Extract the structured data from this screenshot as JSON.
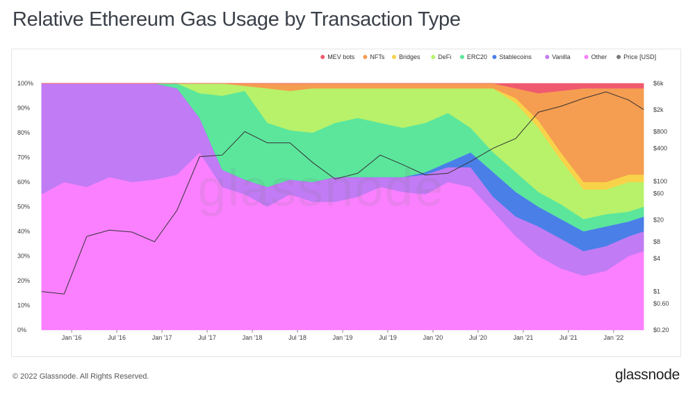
{
  "title": "Relative Ethereum Gas Usage by Transaction Type",
  "footer": {
    "copyright": "© 2022 Glassnode. All Rights Reserved.",
    "brand": "glassnode"
  },
  "watermark": "glassnode",
  "chart_data": {
    "type": "area",
    "stacked": true,
    "title": "Relative Ethereum Gas Usage by Transaction Type",
    "legend_position": "top-right",
    "grid": false,
    "x_ticks": [
      "Jan '16",
      "Jul '16",
      "Jan '17",
      "Jul '17",
      "Jan '18",
      "Jul '18",
      "Jan '19",
      "Jul '19",
      "Jan '20",
      "Jul '20",
      "Jan '21",
      "Jul '21",
      "Jan '22"
    ],
    "y_left_ticks": [
      "0%",
      "10%",
      "20%",
      "30%",
      "40%",
      "50%",
      "60%",
      "70%",
      "80%",
      "90%",
      "100%"
    ],
    "y_left_range": [
      0,
      100
    ],
    "y_right_scale": "log",
    "y_right_range": [
      0.2,
      6000
    ],
    "y_right_ticks": [
      {
        "label": "$0.20",
        "value": 0.2
      },
      {
        "label": "$0.60",
        "value": 0.6
      },
      {
        "label": "$1",
        "value": 1
      },
      {
        "label": "$4",
        "value": 4
      },
      {
        "label": "$8",
        "value": 8
      },
      {
        "label": "$20",
        "value": 20
      },
      {
        "label": "$60",
        "value": 60
      },
      {
        "label": "$100",
        "value": 100
      },
      {
        "label": "$400",
        "value": 400
      },
      {
        "label": "$800",
        "value": 800
      },
      {
        "label": "$2k",
        "value": 2000
      },
      {
        "label": "$6k",
        "value": 6000
      }
    ],
    "x": [
      "2015-09",
      "2015-12",
      "2016-03",
      "2016-06",
      "2016-09",
      "2016-12",
      "2017-03",
      "2017-06",
      "2017-09",
      "2017-12",
      "2018-03",
      "2018-06",
      "2018-09",
      "2018-12",
      "2019-03",
      "2019-06",
      "2019-09",
      "2019-12",
      "2020-03",
      "2020-06",
      "2020-09",
      "2020-12",
      "2021-03",
      "2021-06",
      "2021-09",
      "2021-12",
      "2022-03",
      "2022-05"
    ],
    "series": [
      {
        "name": "Other",
        "color": "#fa80ff",
        "values": [
          55,
          60,
          58,
          62,
          60,
          61,
          63,
          72,
          58,
          55,
          50,
          55,
          52,
          52,
          54,
          58,
          56,
          55,
          60,
          58,
          48,
          38,
          30,
          25,
          22,
          24,
          30,
          32
        ]
      },
      {
        "name": "Vanilla",
        "color": "#c17bf4",
        "values": [
          45,
          40,
          42,
          38,
          40,
          39,
          35,
          14,
          7,
          6,
          8,
          6,
          8,
          10,
          8,
          4,
          6,
          8,
          6,
          8,
          6,
          8,
          12,
          12,
          10,
          10,
          8,
          8
        ]
      },
      {
        "name": "Stablecoins",
        "color": "#4a7fe8",
        "values": [
          0,
          0,
          0,
          0,
          0,
          0,
          0,
          0,
          0,
          0,
          0,
          0,
          0,
          0,
          0,
          0,
          0,
          1,
          2,
          6,
          10,
          10,
          8,
          8,
          8,
          8,
          6,
          6
        ]
      },
      {
        "name": "ERC20",
        "color": "#5be69c",
        "values": [
          0,
          0,
          0,
          0,
          0,
          0,
          2,
          10,
          30,
          36,
          26,
          20,
          20,
          22,
          24,
          22,
          20,
          20,
          20,
          10,
          8,
          8,
          6,
          6,
          5,
          5,
          4,
          4
        ]
      },
      {
        "name": "DeFi",
        "color": "#b7f26a",
        "values": [
          0,
          0,
          0,
          0,
          0,
          0,
          0,
          4,
          5,
          2,
          14,
          16,
          18,
          14,
          12,
          14,
          16,
          14,
          10,
          16,
          26,
          28,
          26,
          18,
          12,
          10,
          12,
          10
        ]
      },
      {
        "name": "Bridges",
        "color": "#f8d349",
        "values": [
          0,
          0,
          0,
          0,
          0,
          0,
          0,
          0,
          0,
          0,
          0,
          0,
          0,
          0,
          0,
          0,
          0,
          0,
          0,
          0,
          0,
          2,
          3,
          3,
          3,
          3,
          3,
          3
        ]
      },
      {
        "name": "NFTs",
        "color": "#f59d51",
        "values": [
          0,
          0,
          0,
          0,
          0,
          0,
          0,
          0,
          0,
          1,
          2,
          3,
          2,
          2,
          2,
          2,
          2,
          2,
          2,
          2,
          2,
          4,
          11,
          25,
          38,
          38,
          35,
          35
        ]
      },
      {
        "name": "MEV bots",
        "color": "#f05a6e",
        "values": [
          0,
          0,
          0,
          0,
          0,
          0,
          0,
          0,
          0,
          0,
          0,
          0,
          0,
          0,
          0,
          0,
          0,
          0,
          0,
          0,
          0,
          2,
          4,
          3,
          2,
          2,
          2,
          2
        ]
      }
    ],
    "price": {
      "name": "Price [USD]",
      "color": "#333333",
      "values": [
        1.0,
        0.9,
        10,
        13,
        12,
        8,
        30,
        280,
        300,
        800,
        500,
        500,
        220,
        110,
        140,
        300,
        200,
        130,
        140,
        230,
        400,
        600,
        1800,
        2300,
        3200,
        4200,
        3000,
        2000
      ]
    }
  }
}
